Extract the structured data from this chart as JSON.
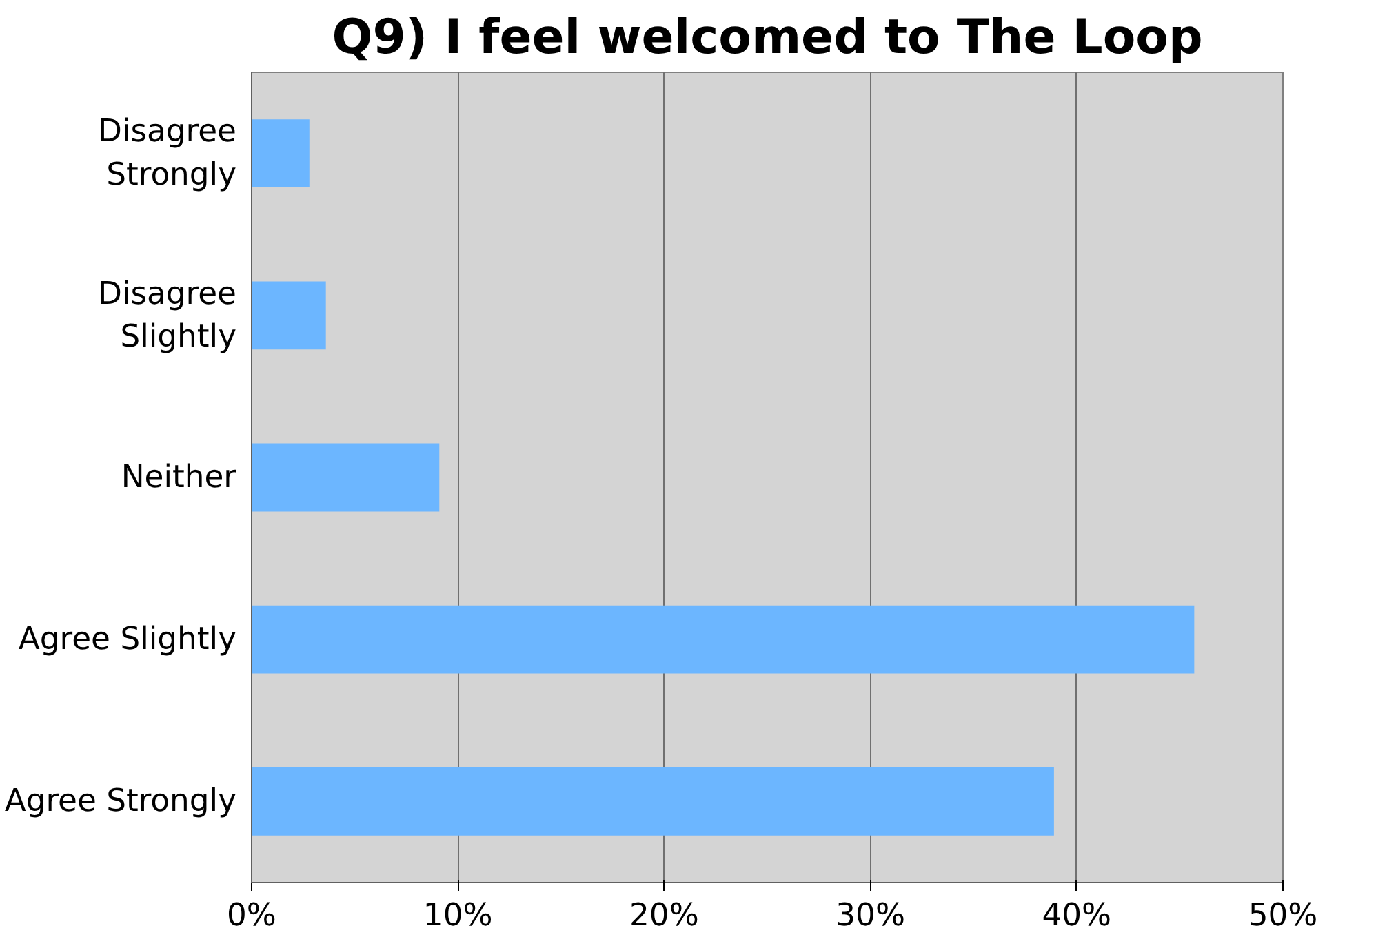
{
  "chart_data": {
    "type": "bar",
    "orientation": "horizontal",
    "title": "Q9) I feel welcomed to The Loop",
    "categories": [
      "Disagree Strongly",
      "Disagree Slightly",
      "Neither",
      "Agree Slightly",
      "Agree Strongly"
    ],
    "values": [
      2.8,
      3.6,
      9.1,
      45.7,
      38.9
    ],
    "color": "#6cb6ff",
    "xlim": [
      0,
      50
    ],
    "xticks": [
      {
        "value": 0,
        "label": "0%"
      },
      {
        "value": 10,
        "label": "10%"
      },
      {
        "value": 20,
        "label": "20%"
      },
      {
        "value": 30,
        "label": "30%"
      },
      {
        "value": 40,
        "label": "40%"
      },
      {
        "value": 50,
        "label": "50%"
      }
    ],
    "grid": "x"
  }
}
